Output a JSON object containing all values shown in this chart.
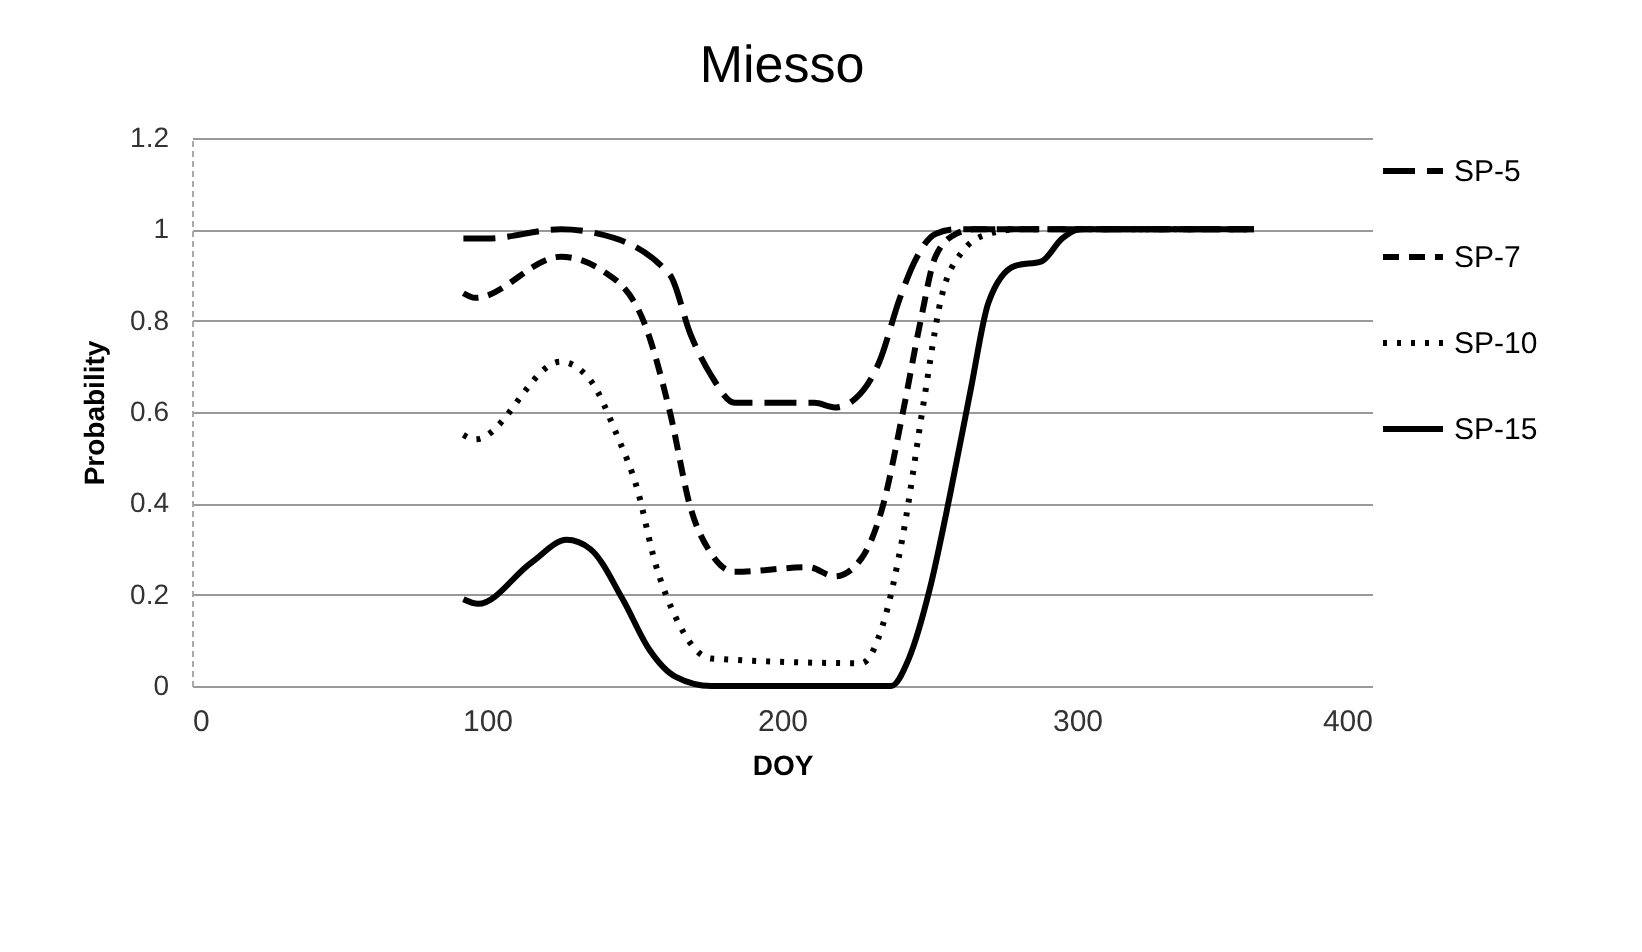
{
  "chart_data": {
    "type": "line",
    "title": "Miesso",
    "xlabel": "DOY",
    "ylabel": "Probability",
    "xlim": [
      0,
      400
    ],
    "xticks": [
      0,
      100,
      200,
      300,
      400
    ],
    "ylim": [
      0,
      1.2
    ],
    "yticks": [
      0,
      0.2,
      0.4,
      0.6,
      0.8,
      1,
      1.2
    ],
    "grid": "y",
    "legend": "right",
    "marker": "none",
    "series": [
      {
        "name": "SP-5",
        "color": "#000000",
        "line_style": "dashed",
        "x": [
          92,
          100,
          125,
          138,
          162,
          169,
          176,
          184,
          191,
          211,
          218,
          225,
          233,
          240,
          245,
          252,
          259,
          300,
          360
        ],
        "values": [
          0.98,
          0.98,
          1.0,
          0.99,
          0.9,
          0.77,
          0.68,
          0.62,
          0.62,
          0.62,
          0.61,
          0.63,
          0.71,
          0.85,
          0.93,
          0.99,
          1.0,
          1.0,
          1.0
        ]
      },
      {
        "name": "SP-7",
        "color": "#000000",
        "line_style": "dashed",
        "x": [
          92,
          96,
          125,
          139,
          153,
          162,
          169,
          176,
          184,
          209,
          218,
          227,
          234,
          241,
          247,
          252,
          259,
          265,
          360
        ],
        "values": [
          0.86,
          0.85,
          0.94,
          0.91,
          0.8,
          0.6,
          0.39,
          0.29,
          0.25,
          0.26,
          0.24,
          0.28,
          0.39,
          0.6,
          0.8,
          0.94,
          0.99,
          1.0,
          1.0
        ]
      },
      {
        "name": "SP-10",
        "color": "#000000",
        "line_style": "dotted",
        "x": [
          92,
          96,
          125,
          135,
          144,
          151,
          157,
          164,
          176,
          227,
          234,
          241,
          248,
          254,
          261,
          270,
          280,
          360
        ],
        "values": [
          0.55,
          0.54,
          0.71,
          0.67,
          0.55,
          0.43,
          0.27,
          0.15,
          0.06,
          0.05,
          0.13,
          0.33,
          0.62,
          0.85,
          0.95,
          0.99,
          1.0,
          1.0
        ]
      },
      {
        "name": "SP-15",
        "color": "#000000",
        "line_style": "solid",
        "x": [
          92,
          97,
          115,
          127,
          135,
          146,
          155,
          164,
          176,
          237,
          243,
          250,
          257,
          264,
          270,
          279,
          288,
          295,
          301,
          360
        ],
        "values": [
          0.19,
          0.18,
          0.27,
          0.32,
          0.3,
          0.19,
          0.08,
          0.02,
          0,
          0,
          0.06,
          0.21,
          0.42,
          0.65,
          0.84,
          0.92,
          0.93,
          0.98,
          1.0,
          1.0
        ]
      }
    ]
  }
}
